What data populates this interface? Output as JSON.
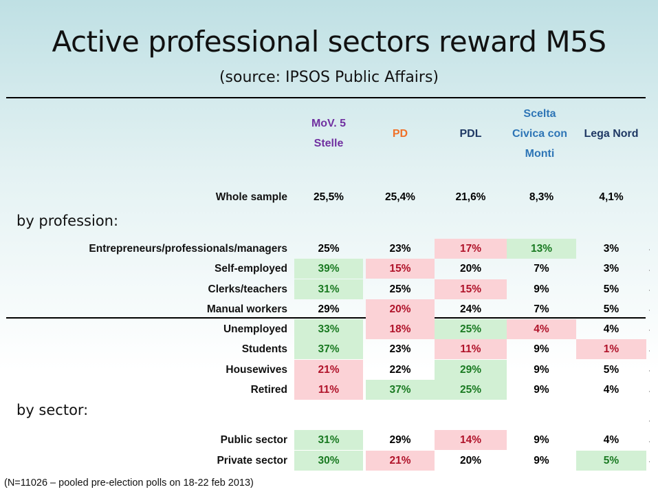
{
  "chart_data": {
    "type": "table",
    "title": "Active professional sectors reward M5S",
    "subtitle": "(source: IPSOS Public Affairs)",
    "columns": [
      {
        "label": "MoV. 5 Stelle",
        "color": "#7030a0"
      },
      {
        "label": "PD",
        "color": "#f07028"
      },
      {
        "label": "PDL",
        "color": "#1f3864"
      },
      {
        "label": "Scelta Civica con Monti",
        "color": "#2e75b6"
      },
      {
        "label": "Lega Nord",
        "color": "#1f3864"
      }
    ],
    "summary_row": {
      "label": "Whole sample",
      "values": [
        "25,5%",
        "25,4%",
        "21,6%",
        "8,3%",
        "4,1%"
      ]
    },
    "sections": [
      {
        "title": "by profession:",
        "rows": [
          {
            "label": "Entrepreneurs/professionals/managers",
            "values": [
              "25%",
              "23%",
              "17%",
              "13%",
              "3%"
            ],
            "highlight": [
              "",
              "",
              "lo",
              "hi",
              ""
            ]
          },
          {
            "label": "Self-employed",
            "values": [
              "39%",
              "15%",
              "20%",
              "7%",
              "3%"
            ],
            "highlight": [
              "hi",
              "lo",
              "",
              "",
              ""
            ]
          },
          {
            "label": "Clerks/teachers",
            "values": [
              "31%",
              "25%",
              "15%",
              "9%",
              "5%"
            ],
            "highlight": [
              "hi",
              "",
              "lo",
              "",
              ""
            ]
          },
          {
            "label": "Manual workers",
            "values": [
              "29%",
              "20%",
              "24%",
              "7%",
              "5%"
            ],
            "highlight": [
              "",
              "lo",
              "",
              "",
              ""
            ]
          },
          {
            "label": "Unemployed",
            "values": [
              "33%",
              "18%",
              "25%",
              "4%",
              "4%"
            ],
            "highlight": [
              "hi",
              "lo",
              "hi",
              "lo",
              ""
            ]
          },
          {
            "label": "Students",
            "values": [
              "37%",
              "23%",
              "11%",
              "9%",
              "1%"
            ],
            "highlight": [
              "hi",
              "",
              "lo",
              "",
              "lo"
            ]
          },
          {
            "label": "Housewives",
            "values": [
              "21%",
              "22%",
              "29%",
              "9%",
              "5%"
            ],
            "highlight": [
              "lo",
              "",
              "hi",
              "",
              ""
            ]
          },
          {
            "label": "Retired",
            "values": [
              "11%",
              "37%",
              "25%",
              "9%",
              "4%"
            ],
            "highlight": [
              "lo",
              "hi",
              "hi",
              "",
              ""
            ]
          }
        ]
      },
      {
        "title": "by sector:",
        "rows": [
          {
            "label": "Public sector",
            "values": [
              "31%",
              "29%",
              "14%",
              "9%",
              "4%"
            ],
            "highlight": [
              "hi",
              "",
              "lo",
              "",
              ""
            ]
          },
          {
            "label": "Private sector",
            "values": [
              "30%",
              "21%",
              "20%",
              "9%",
              "5%"
            ],
            "highlight": [
              "hi",
              "lo",
              "",
              "",
              "hi"
            ]
          }
        ]
      }
    ],
    "footnote": "(N=11026 – pooled pre-election polls on 18-22 feb 2013)"
  }
}
